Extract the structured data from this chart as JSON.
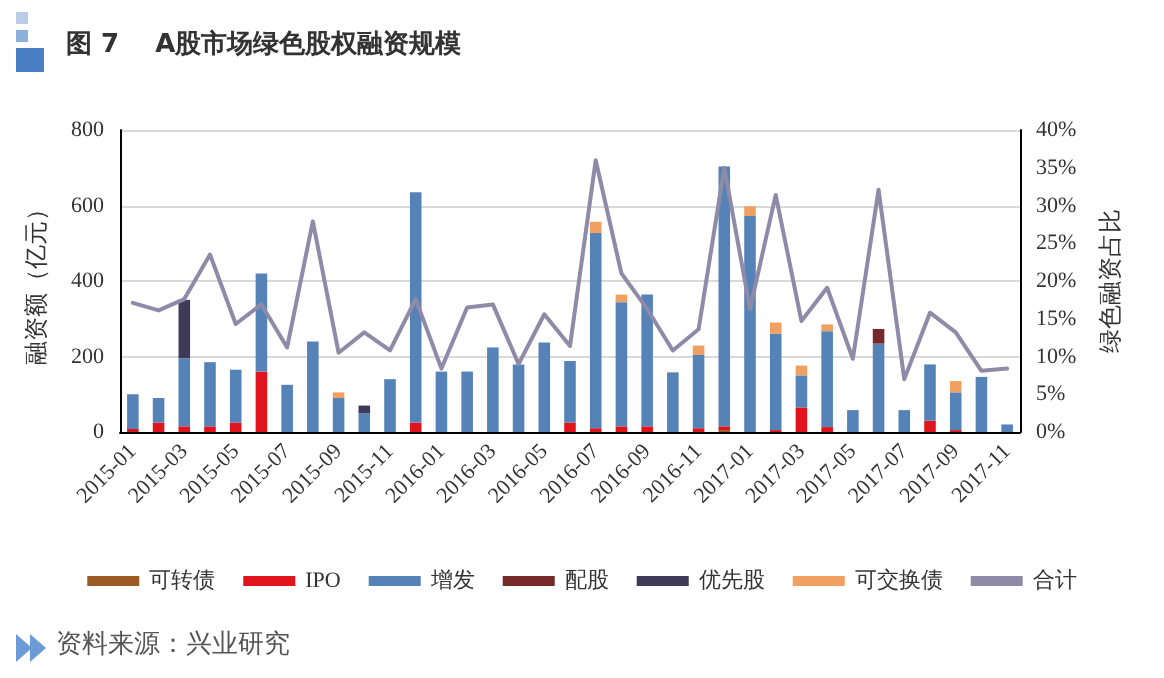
{
  "chart_data": {
    "type": "bar",
    "stacked": true,
    "title": "图 7    A股市场绿色股权融资规模",
    "ylabel": "融资额（亿元）",
    "y2label": "绿色融资占比",
    "categories": [
      "2015-01",
      null,
      "2015-03",
      null,
      "2015-05",
      null,
      "2015-07",
      null,
      "2015-09",
      null,
      "2015-11",
      null,
      "2016-01",
      null,
      "2016-03",
      null,
      "2016-05",
      null,
      "2016-07",
      null,
      "2016-09",
      null,
      "2016-11",
      null,
      "2017-01",
      null,
      "2017-03",
      null,
      "2017-05",
      null,
      "2017-07",
      null,
      "2017-09",
      null,
      "2017-11"
    ],
    "series": [
      {
        "name": "可转债",
        "color": "#9c5b25",
        "values": [
          null,
          null,
          null,
          null,
          null,
          null,
          null,
          null,
          null,
          null,
          null,
          null,
          null,
          null,
          null,
          null,
          null,
          null,
          null,
          null,
          null,
          null,
          null,
          5,
          null,
          null,
          null,
          null,
          null,
          null,
          null,
          null,
          null,
          null,
          null
        ]
      },
      {
        "name": "IPO",
        "color": "#e0141c",
        "values": [
          8,
          25,
          15,
          15,
          25,
          160,
          null,
          null,
          null,
          null,
          null,
          25,
          null,
          null,
          null,
          null,
          null,
          25,
          10,
          15,
          15,
          null,
          10,
          10,
          null,
          5,
          65,
          13,
          null,
          null,
          null,
          30,
          5,
          null,
          null
        ]
      },
      {
        "name": "增发",
        "color": "#5583b8",
        "values": [
          92,
          65,
          180,
          170,
          140,
          260,
          125,
          240,
          90,
          50,
          140,
          610,
          160,
          160,
          224,
          179,
          237,
          163,
          517,
          329,
          349,
          158,
          194,
          688,
          572,
          255,
          85,
          254,
          58,
          234,
          58,
          149,
          100,
          146,
          20
        ]
      },
      {
        "name": "配股",
        "color": "#76292a",
        "values": [
          null,
          null,
          null,
          null,
          null,
          null,
          null,
          null,
          null,
          null,
          null,
          null,
          null,
          null,
          null,
          null,
          null,
          null,
          null,
          null,
          null,
          null,
          null,
          null,
          null,
          null,
          null,
          null,
          null,
          39,
          null,
          null,
          null,
          null,
          null
        ]
      },
      {
        "name": "优先股",
        "color": "#3e3a57",
        "values": [
          null,
          null,
          155,
          null,
          null,
          null,
          null,
          null,
          null,
          20,
          null,
          null,
          null,
          null,
          null,
          null,
          null,
          null,
          null,
          null,
          null,
          null,
          null,
          null,
          null,
          null,
          null,
          null,
          null,
          null,
          null,
          null,
          null,
          null,
          null
        ]
      },
      {
        "name": "可交换债",
        "color": "#f0a060",
        "values": [
          null,
          null,
          null,
          null,
          null,
          null,
          null,
          null,
          15,
          null,
          null,
          null,
          null,
          null,
          null,
          null,
          null,
          null,
          30,
          20,
          null,
          null,
          25,
          null,
          26,
          30,
          26,
          18,
          null,
          null,
          null,
          null,
          30,
          null,
          null
        ]
      },
      {
        "name": "合计",
        "type": "line",
        "axis": "y2",
        "color": "#8e8aa8",
        "marker": "none",
        "values": [
          17.1,
          16.1,
          17.6,
          23.5,
          14.3,
          16.9,
          11.2,
          27.9,
          10.5,
          13.2,
          10.8,
          17.6,
          8.4,
          16.5,
          16.9,
          9,
          15.6,
          11.4,
          36,
          21,
          16.3,
          10.8,
          13.6,
          35,
          16.3,
          31.4,
          14.7,
          19.1,
          9.7,
          32.1,
          7,
          15.8,
          13.2,
          8.1,
          8.4
        ]
      }
    ],
    "ylim": [
      0,
      800
    ],
    "yticks": [
      0,
      200,
      400,
      600,
      800
    ],
    "y2lim": [
      0,
      40
    ],
    "y2ticks": [
      {
        "value": 0,
        "label": "0%"
      },
      {
        "value": 5,
        "label": "5%"
      },
      {
        "value": 10,
        "label": "10%"
      },
      {
        "value": 15,
        "label": "15%"
      },
      {
        "value": 20,
        "label": "20%"
      },
      {
        "value": 25,
        "label": "25%"
      },
      {
        "value": 30,
        "label": "30%"
      },
      {
        "value": 35,
        "label": "35%"
      },
      {
        "value": 40,
        "label": "40%"
      }
    ],
    "grid": "y",
    "legend": "bottom",
    "annotations": [
      "资料来源：兴业研究"
    ]
  }
}
